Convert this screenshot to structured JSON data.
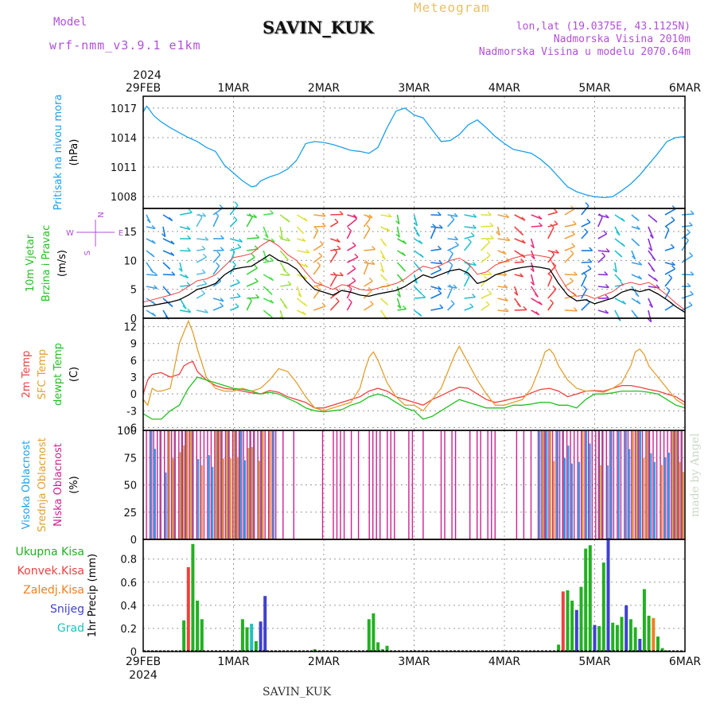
{
  "header": {
    "model_label": "Model",
    "model_version": "wrf-nmm_v3.9.1 e1km",
    "station": "SAVIN_KUK",
    "product": "Meteogram",
    "lonlat": "lon,lat (19.0375E, 43.1125N)",
    "altitude": "Nadmorska Visina 2010m",
    "model_altitude": "Nadmorska Visina u modelu 2070.64m"
  },
  "footer": {
    "station": "SAVIN_KUK",
    "credit": "made by Angel"
  },
  "time_axis": {
    "year": "2024",
    "ticks": [
      "29FEB",
      "1MAR",
      "2MAR",
      "3MAR",
      "4MAR",
      "5MAR",
      "6MAR"
    ]
  },
  "chart_data": [
    {
      "type": "line",
      "id": "pressure",
      "ylabel_lines": [
        "Pritisak na nivou mora",
        "(hPa)"
      ],
      "ylabel_colors": [
        "#1ea0e8",
        "#000000"
      ],
      "ylim": [
        1006.8,
        1018.2
      ],
      "yticks": [
        1008,
        1011,
        1014,
        1017
      ],
      "color": "#1ea0e8",
      "x": [
        0,
        0.04,
        0.12,
        0.2,
        0.3,
        0.4,
        0.5,
        0.6,
        0.7,
        0.75,
        0.8,
        0.9,
        1.0,
        1.1,
        1.2,
        1.25,
        1.3,
        1.4,
        1.5,
        1.6,
        1.7,
        1.8,
        1.9,
        2.0,
        2.1,
        2.2,
        2.3,
        2.4,
        2.5,
        2.6,
        2.7,
        2.8,
        2.9,
        3.0,
        3.1,
        3.2,
        3.3,
        3.4,
        3.5,
        3.6,
        3.7,
        3.8,
        3.9,
        4.0,
        4.1,
        4.2,
        4.3,
        4.4,
        4.5,
        4.6,
        4.7,
        4.8,
        4.9,
        5.0,
        5.1,
        5.2,
        5.3,
        5.4,
        5.5,
        5.6,
        5.7,
        5.8,
        5.9,
        6.0
      ],
      "values": [
        1016.6,
        1017.2,
        1016.2,
        1015.6,
        1015.0,
        1014.5,
        1014.0,
        1013.6,
        1013.0,
        1012.8,
        1012.6,
        1011.2,
        1010.4,
        1009.6,
        1009.0,
        1009.1,
        1009.6,
        1010.0,
        1010.3,
        1010.8,
        1011.7,
        1013.4,
        1013.6,
        1013.5,
        1013.3,
        1013.0,
        1012.7,
        1012.6,
        1012.4,
        1013.0,
        1015.0,
        1016.7,
        1017.0,
        1016.3,
        1016.0,
        1014.8,
        1013.6,
        1013.7,
        1014.3,
        1015.3,
        1015.8,
        1015.0,
        1014.1,
        1013.4,
        1012.8,
        1012.6,
        1012.4,
        1011.8,
        1011.0,
        1010.0,
        1009.0,
        1008.5,
        1008.2,
        1008.0,
        1007.9,
        1008.0,
        1008.6,
        1009.3,
        1010.2,
        1011.3,
        1012.4,
        1013.6,
        1014.0,
        1014.1
      ]
    },
    {
      "type": "line",
      "id": "wind",
      "ylabel_lines": [
        "10m Vjetar",
        "Brzina i Pravac",
        "(m/s)"
      ],
      "ylabel_colors": [
        "#22c022",
        "#22c022",
        "#000000"
      ],
      "compass": [
        "N",
        "W",
        "E",
        "S"
      ],
      "ylim": [
        0,
        19
      ],
      "yticks": [
        0,
        5,
        10,
        15
      ],
      "series": [
        {
          "color": "#000000",
          "x": [
            0,
            0.1,
            0.2,
            0.3,
            0.4,
            0.5,
            0.6,
            0.7,
            0.8,
            0.9,
            1.0,
            1.1,
            1.2,
            1.3,
            1.4,
            1.5,
            1.6,
            1.7,
            1.8,
            1.9,
            2.0,
            2.1,
            2.2,
            2.3,
            2.4,
            2.5,
            2.6,
            2.7,
            2.8,
            2.9,
            3.0,
            3.1,
            3.2,
            3.3,
            3.4,
            3.5,
            3.6,
            3.7,
            3.8,
            3.9,
            4.0,
            4.1,
            4.2,
            4.3,
            4.4,
            4.5,
            4.6,
            4.7,
            4.8,
            4.9,
            5.0,
            5.1,
            5.2,
            5.3,
            5.4,
            5.5,
            5.6,
            5.7,
            5.8,
            5.9,
            6.0
          ],
          "values": [
            2.0,
            2.2,
            2.5,
            2.8,
            3.2,
            4.0,
            5.0,
            5.4,
            6.0,
            7.5,
            8.5,
            8.8,
            9.0,
            10.0,
            11.0,
            10.0,
            9.5,
            8.5,
            6.5,
            5.0,
            4.5,
            4.0,
            4.8,
            4.5,
            4.0,
            3.8,
            4.2,
            4.5,
            4.8,
            5.5,
            6.5,
            7.5,
            7.0,
            7.6,
            8.2,
            8.5,
            7.8,
            6.0,
            6.5,
            7.5,
            8.0,
            8.5,
            8.8,
            9.0,
            8.8,
            8.5,
            6.0,
            4.0,
            3.0,
            3.2,
            2.5,
            3.0,
            3.5,
            4.5,
            5.0,
            4.6,
            5.0,
            4.2,
            3.2,
            2.0,
            1.0
          ]
        },
        {
          "color": "#f04040",
          "x": [
            0,
            0.1,
            0.2,
            0.3,
            0.4,
            0.5,
            0.6,
            0.7,
            0.8,
            0.9,
            1.0,
            1.1,
            1.2,
            1.3,
            1.4,
            1.5,
            1.6,
            1.7,
            1.8,
            1.9,
            2.0,
            2.1,
            2.2,
            2.3,
            2.4,
            2.5,
            2.6,
            2.7,
            2.8,
            2.9,
            3.0,
            3.1,
            3.2,
            3.3,
            3.4,
            3.5,
            3.6,
            3.7,
            3.8,
            3.9,
            4.0,
            4.1,
            4.2,
            4.3,
            4.4,
            4.5,
            4.6,
            4.7,
            4.8,
            4.9,
            5.0,
            5.1,
            5.2,
            5.3,
            5.4,
            5.5,
            5.6,
            5.7,
            5.8,
            5.9,
            6.0
          ],
          "values": [
            2.8,
            3.2,
            3.6,
            4.0,
            4.5,
            5.5,
            6.5,
            6.8,
            7.5,
            9.0,
            10.5,
            10.8,
            11.2,
            12.5,
            13.5,
            12.5,
            11.0,
            10.0,
            8.0,
            6.2,
            5.6,
            5.0,
            5.8,
            5.6,
            5.0,
            4.8,
            5.2,
            5.6,
            6.0,
            6.8,
            8.0,
            9.0,
            8.6,
            9.2,
            10.0,
            10.4,
            9.5,
            7.6,
            8.0,
            9.2,
            9.8,
            10.4,
            10.8,
            11.0,
            10.8,
            10.5,
            7.5,
            5.0,
            3.8,
            4.0,
            3.4,
            4.0,
            4.6,
            5.8,
            6.2,
            5.8,
            6.2,
            5.2,
            4.0,
            2.6,
            1.4
          ]
        }
      ],
      "barb_colors": [
        "#3aa0e8",
        "#1878e0",
        "#20c0d0",
        "#58c0e0",
        "#3aa0e8",
        "#20c0d0",
        "#3ad03a",
        "#48e048",
        "#a0e040",
        "#e0e040",
        "#f0a040",
        "#f04040",
        "#e83078",
        "#f0a040",
        "#e0e040",
        "#3ad03a",
        "#20c0d0",
        "#1878e0",
        "#3aa0e8",
        "#20c0d0",
        "#e0e040",
        "#f0a040",
        "#f04040",
        "#e83078",
        "#f04040",
        "#f0a040",
        "#1878e0",
        "#8a30d8",
        "#20c0d0",
        "#3aa0e8",
        "#8a30d8",
        "#1878e0",
        "#3aa0e8"
      ]
    },
    {
      "type": "line",
      "id": "temperature",
      "ylabel_lines": [
        "2m Temp",
        "SFC Temp",
        "dewpt Temp",
        "(C)"
      ],
      "ylabel_colors": [
        "#f04040",
        "#e0a030",
        "#22c022",
        "#000000"
      ],
      "ylim": [
        -6.5,
        13.5
      ],
      "yticks": [
        -6,
        -3,
        0,
        3,
        6,
        9,
        12
      ],
      "series": [
        {
          "name": "2m Temp",
          "color": "#f04040",
          "x": [
            0,
            0.05,
            0.1,
            0.2,
            0.3,
            0.4,
            0.45,
            0.5,
            0.55,
            0.6,
            0.7,
            0.8,
            0.9,
            1.0,
            1.1,
            1.2,
            1.3,
            1.4,
            1.5,
            1.6,
            1.7,
            1.8,
            1.9,
            2.0,
            2.1,
            2.2,
            2.3,
            2.4,
            2.5,
            2.6,
            2.7,
            2.8,
            2.9,
            3.0,
            3.1,
            3.2,
            3.3,
            3.4,
            3.5,
            3.6,
            3.7,
            3.8,
            3.9,
            4.0,
            4.1,
            4.2,
            4.3,
            4.4,
            4.5,
            4.6,
            4.7,
            4.8,
            4.9,
            5.0,
            5.1,
            5.2,
            5.3,
            5.4,
            5.5,
            5.6,
            5.7,
            5.8,
            5.9,
            6.0
          ],
          "values": [
            0,
            2.5,
            3.5,
            3.8,
            3.0,
            3.5,
            5.0,
            5.5,
            5.8,
            4.0,
            2.5,
            1.5,
            1.0,
            0.8,
            0.5,
            0.2,
            0,
            0.6,
            0.3,
            -0.5,
            -1.0,
            -1.5,
            -2.5,
            -2.5,
            -2.0,
            -1.5,
            -1.0,
            -0.5,
            0.5,
            1.0,
            0.5,
            -0.5,
            -1.0,
            -1.5,
            -2.0,
            -1.0,
            -0.3,
            0.5,
            1.2,
            1.0,
            0,
            -1.0,
            -1.5,
            -1.2,
            -0.8,
            -0.5,
            0.2,
            0.8,
            1.0,
            0.5,
            -0.5,
            0,
            0.5,
            0.6,
            0.5,
            1.0,
            1.5,
            1.5,
            1.2,
            0.8,
            0.5,
            0,
            -0.5,
            -1.5
          ]
        },
        {
          "name": "SFC Temp",
          "color": "#e0a030",
          "x": [
            0,
            0.05,
            0.1,
            0.15,
            0.2,
            0.3,
            0.35,
            0.4,
            0.45,
            0.5,
            0.55,
            0.6,
            0.7,
            0.8,
            0.9,
            1.0,
            1.1,
            1.2,
            1.3,
            1.4,
            1.5,
            1.6,
            1.7,
            1.8,
            1.9,
            2.0,
            2.1,
            2.2,
            2.3,
            2.4,
            2.45,
            2.5,
            2.55,
            2.6,
            2.7,
            2.8,
            2.9,
            3.0,
            3.1,
            3.2,
            3.3,
            3.4,
            3.45,
            3.5,
            3.55,
            3.6,
            3.7,
            3.8,
            3.9,
            4.0,
            4.1,
            4.2,
            4.3,
            4.4,
            4.45,
            4.5,
            4.55,
            4.6,
            4.7,
            4.8,
            4.9,
            5.0,
            5.1,
            5.2,
            5.3,
            5.4,
            5.45,
            5.5,
            5.55,
            5.6,
            5.7,
            5.8,
            5.9,
            6.0
          ],
          "values": [
            -1.0,
            -2.0,
            1.0,
            0.5,
            0.5,
            1.0,
            5.0,
            9.0,
            11.0,
            13.0,
            11.0,
            8.0,
            3.0,
            1.0,
            0.5,
            0.5,
            1.0,
            0.5,
            1.0,
            2.5,
            4.5,
            4.0,
            2.0,
            -0.5,
            -2.5,
            -3.0,
            -2.5,
            -2.0,
            -1.5,
            1.0,
            4.0,
            6.5,
            7.5,
            6.0,
            2.0,
            -0.5,
            -2.0,
            -2.0,
            -3.0,
            -1.0,
            1.0,
            5.0,
            7.0,
            8.5,
            7.0,
            5.5,
            2.5,
            0,
            -2.0,
            -2.0,
            -1.5,
            -1.0,
            1.0,
            5.0,
            7.5,
            8.0,
            7.0,
            5.0,
            2.5,
            1.0,
            0.5,
            0.5,
            0.3,
            1.0,
            2.0,
            5.0,
            7.5,
            8.0,
            7.0,
            5.0,
            3.0,
            1.0,
            -1.0,
            -2.0
          ]
        },
        {
          "name": "dewpt Temp",
          "color": "#22c022",
          "x": [
            0,
            0.1,
            0.2,
            0.3,
            0.4,
            0.5,
            0.6,
            0.7,
            0.8,
            0.9,
            1.0,
            1.1,
            1.2,
            1.3,
            1.4,
            1.5,
            1.6,
            1.7,
            1.8,
            1.9,
            2.0,
            2.1,
            2.2,
            2.3,
            2.4,
            2.5,
            2.6,
            2.7,
            2.8,
            2.9,
            3.0,
            3.1,
            3.2,
            3.3,
            3.4,
            3.5,
            3.6,
            3.7,
            3.8,
            3.9,
            4.0,
            4.1,
            4.2,
            4.3,
            4.4,
            4.5,
            4.6,
            4.7,
            4.8,
            4.9,
            5.0,
            5.1,
            5.2,
            5.3,
            5.4,
            5.5,
            5.6,
            5.7,
            5.8,
            5.9,
            6.0
          ],
          "values": [
            -3.5,
            -4.5,
            -4.5,
            -3.0,
            -2.0,
            1.0,
            3.0,
            2.5,
            2.0,
            1.5,
            1.0,
            0.8,
            0.5,
            0,
            0.3,
            0,
            -0.8,
            -1.5,
            -2.5,
            -3.0,
            -3.2,
            -3.0,
            -2.8,
            -2.0,
            -1.5,
            -0.5,
            0,
            -0.5,
            -1.5,
            -2.5,
            -3.0,
            -4.5,
            -4.0,
            -3.0,
            -2.0,
            -1.0,
            -1.5,
            -2.0,
            -2.5,
            -2.5,
            -2.5,
            -2.0,
            -2.0,
            -1.8,
            -1.5,
            -1.5,
            -2.0,
            -2.0,
            -2.5,
            -1.0,
            0,
            0,
            0.2,
            0.5,
            0.5,
            0.5,
            0.3,
            0,
            -1.0,
            -2.0,
            -2.5
          ]
        }
      ]
    },
    {
      "type": "bar",
      "id": "clouds",
      "ylabel_lines": [
        "Visoka Oblacnost",
        "Srednja Oblacnost",
        "Niska Oblacnost",
        "(%)"
      ],
      "ylabel_colors": [
        "#1ea0e8",
        "#e0a030",
        "#d02090",
        "#000000"
      ],
      "ylim": [
        0,
        100
      ],
      "yticks": [
        0,
        25,
        50,
        75,
        100
      ],
      "colors": {
        "high": "#1ea0e8",
        "mid": "#e0a030",
        "low": "#d02090",
        "grey": "#7a7a9a"
      }
    },
    {
      "type": "bar",
      "id": "precip",
      "ylabel_lines": [
        "1hr Precip (mm)"
      ],
      "ylabel_colors": [
        "#000000"
      ],
      "legend": [
        {
          "label": "Ukupna Kisa",
          "color": "#22b022"
        },
        {
          "label": "Konvek.Kisa",
          "color": "#f04040"
        },
        {
          "label": "Zaledj.Kisa",
          "color": "#f08020"
        },
        {
          "label": "Snijeg",
          "color": "#4040d0"
        },
        {
          "label": "Grad",
          "color": "#20c0c0"
        }
      ],
      "ylim": [
        0,
        0.97
      ],
      "yticks": [
        0,
        0.2,
        0.4,
        0.6,
        0.8
      ],
      "x": [
        0.45,
        0.5,
        0.55,
        0.6,
        0.65,
        1.1,
        1.15,
        1.2,
        1.25,
        1.3,
        1.35,
        1.9,
        2.5,
        2.55,
        2.6,
        2.65,
        2.7,
        4.6,
        4.65,
        4.7,
        4.75,
        4.8,
        4.85,
        4.9,
        4.95,
        5.0,
        5.05,
        5.1,
        5.15,
        5.2,
        5.25,
        5.3,
        5.35,
        5.4,
        5.45,
        5.5,
        5.55,
        5.6,
        5.65,
        5.7,
        5.75,
        5.8
      ],
      "values": [
        0.27,
        0.73,
        0.93,
        0.44,
        0.28,
        0.28,
        0.21,
        0.24,
        0.09,
        0.26,
        0.48,
        0.02,
        0.28,
        0.33,
        0.08,
        0.02,
        0.05,
        0.06,
        0.52,
        0.53,
        0.44,
        0.36,
        0.56,
        0.89,
        0.92,
        0.23,
        0.22,
        0.77,
        0.98,
        0.25,
        0.23,
        0.3,
        0.4,
        0.28,
        0.21,
        0.11,
        0.54,
        0.31,
        0.29,
        0.13,
        0.03,
        0.01
      ],
      "colors": [
        "#22b022",
        "#f04040",
        "#22b022",
        "#22b022",
        "#22b022",
        "#22b022",
        "#22b022",
        "#20c0c0",
        "#22b022",
        "#4040d0",
        "#4040d0",
        "#22b022",
        "#22b022",
        "#22b022",
        "#22b022",
        "#22b022",
        "#22b022",
        "#22b022",
        "#f04040",
        "#22b022",
        "#22b022",
        "#4040d0",
        "#22b022",
        "#22b022",
        "#22b022",
        "#4040d0",
        "#22b022",
        "#22b022",
        "#4040d0",
        "#22b022",
        "#22b022",
        "#22b022",
        "#4040d0",
        "#22b022",
        "#22b022",
        "#4040d0",
        "#22b022",
        "#22b022",
        "#f08020",
        "#22b022",
        "#22b022",
        "#22b022"
      ]
    }
  ]
}
